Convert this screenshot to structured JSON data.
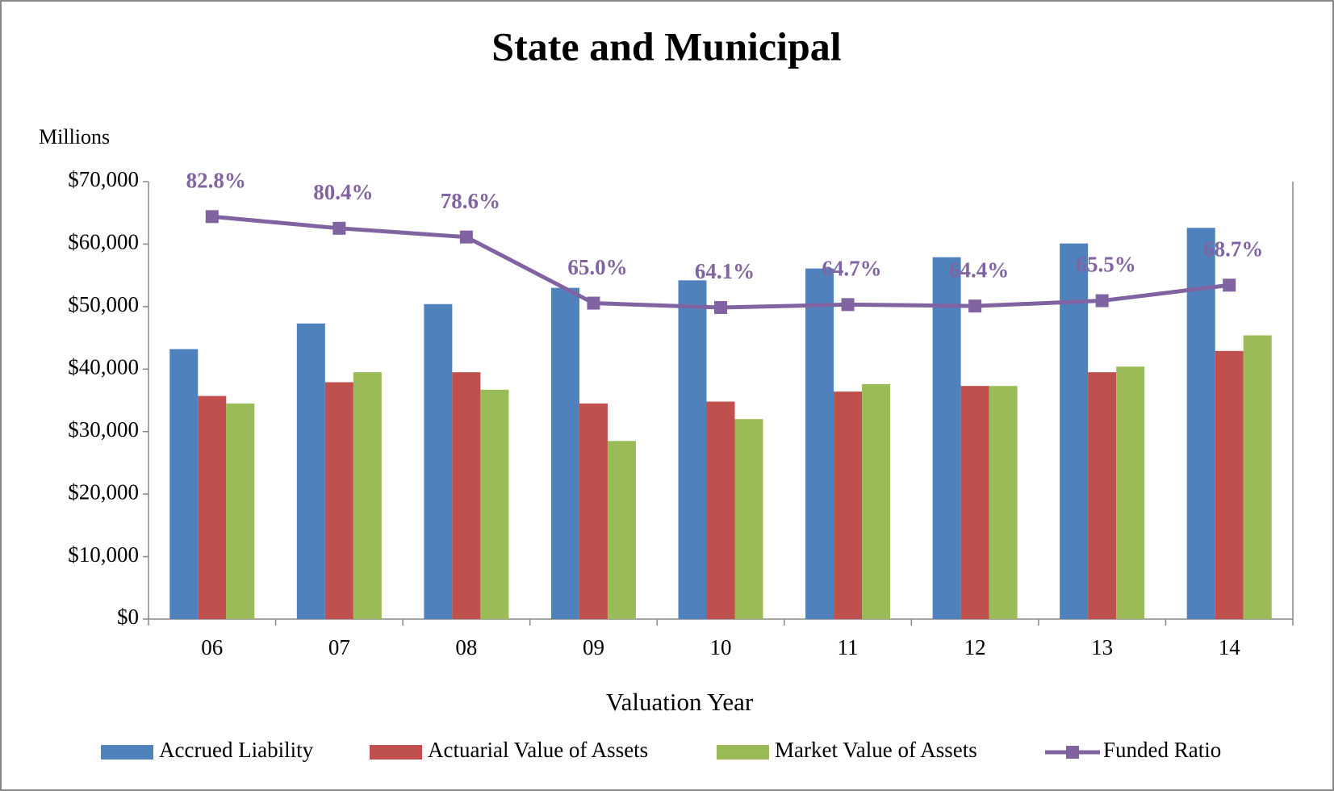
{
  "chart_data": {
    "type": "bar",
    "title": "State and Municipal",
    "y_label": "Millions",
    "x_label": "Valuation Year",
    "categories": [
      "06",
      "07",
      "08",
      "09",
      "10",
      "11",
      "12",
      "13",
      "14"
    ],
    "series": [
      {
        "name": "Accrued Liability",
        "type": "bar",
        "color": "#4f81bd",
        "values": [
          43200,
          47300,
          50400,
          53000,
          54200,
          56100,
          57900,
          60100,
          62600
        ]
      },
      {
        "name": "Actuarial Value of Assets",
        "type": "bar",
        "color": "#c0504d",
        "values": [
          35700,
          37900,
          39500,
          34500,
          34800,
          36400,
          37300,
          39500,
          42900
        ]
      },
      {
        "name": "Market Value of Assets",
        "type": "bar",
        "color": "#9bbb59",
        "values": [
          34500,
          39500,
          36700,
          28500,
          32000,
          37600,
          37300,
          40400,
          45400
        ]
      },
      {
        "name": "Funded Ratio",
        "type": "line",
        "axis": "y2",
        "color": "#8064a2",
        "values": [
          82.8,
          80.4,
          78.6,
          65.0,
          64.1,
          64.7,
          64.4,
          65.5,
          68.7
        ],
        "value_labels": [
          "82.8%",
          "80.4%",
          "78.6%",
          "65.0%",
          "64.1%",
          "64.7%",
          "64.4%",
          "65.5%",
          "68.7%"
        ]
      }
    ],
    "ylim": [
      0,
      70000
    ],
    "yticks": [
      {
        "value": 0,
        "label": "$0"
      },
      {
        "value": 10000,
        "label": "$10,000"
      },
      {
        "value": 20000,
        "label": "$20,000"
      },
      {
        "value": 30000,
        "label": "$30,000"
      },
      {
        "value": 40000,
        "label": "$40,000"
      },
      {
        "value": 50000,
        "label": "$50,000"
      },
      {
        "value": 60000,
        "label": "$60,000"
      },
      {
        "value": 70000,
        "label": "$70,000"
      }
    ],
    "y2lim": [
      0,
      90
    ],
    "legend": "bottom"
  }
}
